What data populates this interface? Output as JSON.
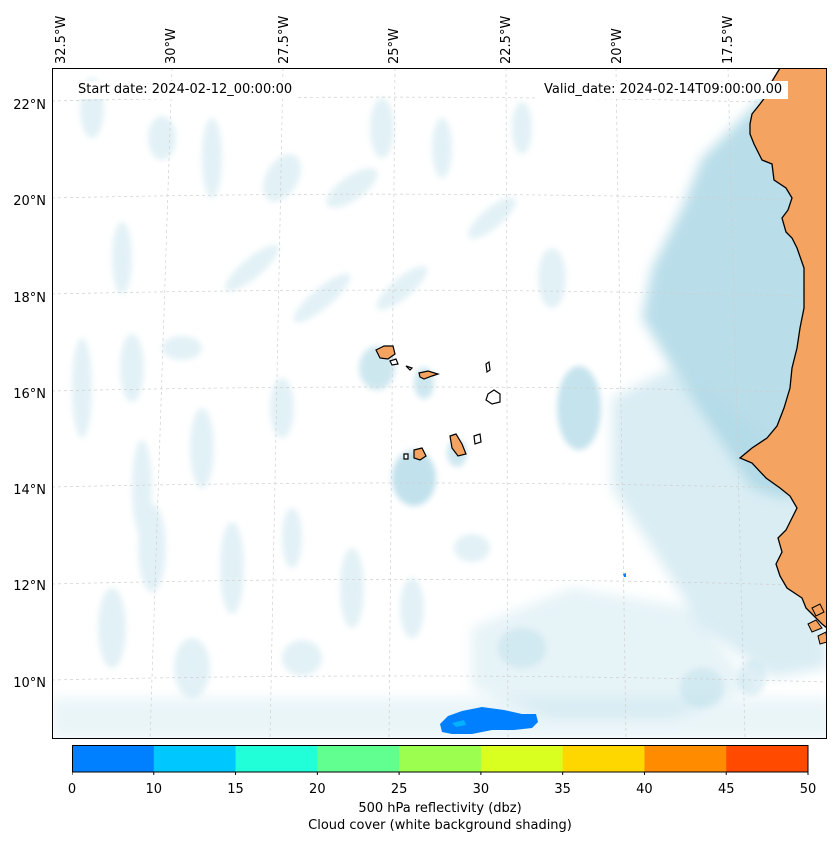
{
  "header": {
    "start_date": "Start date: 2024-02-12_00:00:00",
    "valid_date": "Valid_date: 2024-02-14T09:00:00.00"
  },
  "longitude_labels": [
    "32.5°W",
    "30°W",
    "27.5°W",
    "25°W",
    "22.5°W",
    "20°W",
    "17.5°W"
  ],
  "latitude_labels": [
    "22°N",
    "20°N",
    "18°N",
    "16°N",
    "14°N",
    "12°N",
    "10°N"
  ],
  "colorbar": {
    "ticks": [
      "0",
      "10",
      "15",
      "20",
      "25",
      "30",
      "35",
      "40",
      "45",
      "50"
    ],
    "colors": [
      "#0080ff",
      "#00c8ff",
      "#20ffd8",
      "#60ff90",
      "#9cff50",
      "#d8ff20",
      "#ffd700",
      "#ff8c00",
      "#ff4a00"
    ],
    "label": "500 hPa reflectivity (dbz)",
    "sublabel": "Cloud cover (white background shading)"
  },
  "colors": {
    "land": "#f4a460",
    "cloud": "#add8e6",
    "coastline": "#000000",
    "reflectivity_cell": "#0080ff"
  }
}
